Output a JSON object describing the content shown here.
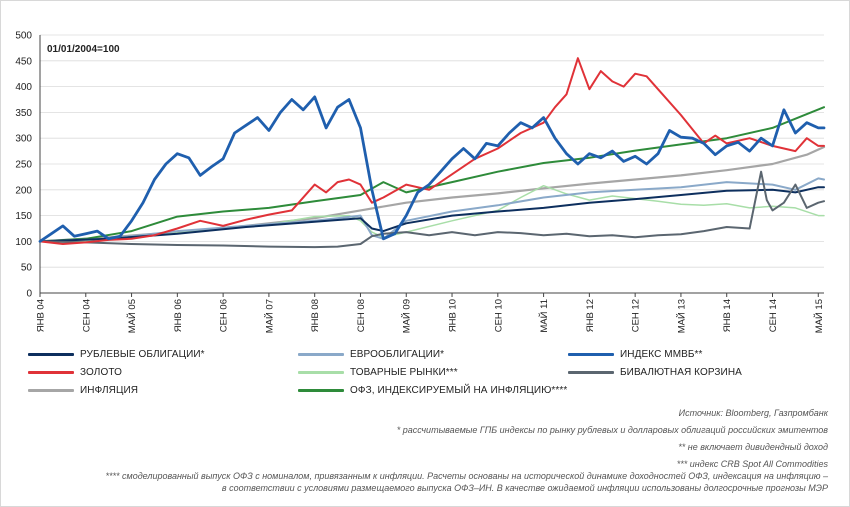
{
  "chart_data": {
    "type": "line",
    "title": "",
    "annotation": "01/01/2004=100",
    "xlabel": "",
    "ylabel": "",
    "ylim": [
      0,
      500
    ],
    "yticks": [
      0,
      50,
      100,
      150,
      200,
      250,
      300,
      350,
      400,
      450,
      500
    ],
    "xlim": [
      0,
      137
    ],
    "x_ticks": [
      {
        "label": "ЯНВ 04",
        "t": 0
      },
      {
        "label": "СЕН 04",
        "t": 8
      },
      {
        "label": "МАЙ 05",
        "t": 16
      },
      {
        "label": "ЯНВ 06",
        "t": 24
      },
      {
        "label": "СЕН 06",
        "t": 32
      },
      {
        "label": "МАЙ 07",
        "t": 40
      },
      {
        "label": "ЯНВ 08",
        "t": 48
      },
      {
        "label": "СЕН 08",
        "t": 56
      },
      {
        "label": "МАЙ 09",
        "t": 64
      },
      {
        "label": "ЯНВ 10",
        "t": 72
      },
      {
        "label": "СЕН 10",
        "t": 80
      },
      {
        "label": "МАЙ 11",
        "t": 88
      },
      {
        "label": "ЯНВ 12",
        "t": 96
      },
      {
        "label": "СЕН 12",
        "t": 104
      },
      {
        "label": "МАЙ 13",
        "t": 112
      },
      {
        "label": "ЯНВ 14",
        "t": 120
      },
      {
        "label": "СЕН 14",
        "t": 128
      },
      {
        "label": "МАЙ 15",
        "t": 136
      }
    ],
    "grid": true,
    "series": [
      {
        "name": "ИНФЛЯЦИЯ",
        "color": "#a6a6a6",
        "width": 2.2,
        "points": [
          [
            0,
            100
          ],
          [
            12,
            108
          ],
          [
            24,
            118
          ],
          [
            36,
            130
          ],
          [
            48,
            145
          ],
          [
            56,
            160
          ],
          [
            64,
            175
          ],
          [
            72,
            185
          ],
          [
            80,
            193
          ],
          [
            88,
            203
          ],
          [
            96,
            212
          ],
          [
            104,
            220
          ],
          [
            112,
            228
          ],
          [
            120,
            238
          ],
          [
            128,
            250
          ],
          [
            134,
            268
          ],
          [
            137,
            283
          ]
        ]
      },
      {
        "name": "ОФЗ, ИНДЕКСИРУЕМЫЙ НА ИНФЛЯЦИЮ****",
        "color": "#2e8b3a",
        "width": 2,
        "points": [
          [
            0,
            100
          ],
          [
            8,
            105
          ],
          [
            16,
            120
          ],
          [
            24,
            148
          ],
          [
            32,
            158
          ],
          [
            40,
            165
          ],
          [
            48,
            178
          ],
          [
            56,
            190
          ],
          [
            60,
            215
          ],
          [
            64,
            195
          ],
          [
            72,
            215
          ],
          [
            80,
            235
          ],
          [
            88,
            252
          ],
          [
            96,
            262
          ],
          [
            104,
            276
          ],
          [
            112,
            288
          ],
          [
            120,
            300
          ],
          [
            128,
            320
          ],
          [
            137,
            360
          ]
        ]
      },
      {
        "name": "ТОВАРНЫЕ РЫНКИ***",
        "color": "#a8dea8",
        "width": 1.5,
        "points": [
          [
            0,
            100
          ],
          [
            8,
            100
          ],
          [
            16,
            108
          ],
          [
            24,
            118
          ],
          [
            32,
            125
          ],
          [
            40,
            133
          ],
          [
            48,
            148
          ],
          [
            54,
            150
          ],
          [
            56,
            140
          ],
          [
            58,
            118
          ],
          [
            60,
            108
          ],
          [
            64,
            118
          ],
          [
            72,
            140
          ],
          [
            80,
            160
          ],
          [
            84,
            185
          ],
          [
            88,
            208
          ],
          [
            92,
            192
          ],
          [
            96,
            180
          ],
          [
            100,
            188
          ],
          [
            104,
            183
          ],
          [
            108,
            178
          ],
          [
            112,
            172
          ],
          [
            116,
            170
          ],
          [
            120,
            173
          ],
          [
            124,
            165
          ],
          [
            128,
            168
          ],
          [
            132,
            165
          ],
          [
            136,
            150
          ],
          [
            137,
            150
          ]
        ]
      },
      {
        "name": "ЕВРООБЛИГАЦИИ*",
        "color": "#8aa9c9",
        "width": 2,
        "points": [
          [
            0,
            100
          ],
          [
            12,
            105
          ],
          [
            24,
            120
          ],
          [
            36,
            130
          ],
          [
            48,
            140
          ],
          [
            56,
            150
          ],
          [
            58,
            112
          ],
          [
            60,
            105
          ],
          [
            64,
            140
          ],
          [
            72,
            158
          ],
          [
            80,
            170
          ],
          [
            88,
            185
          ],
          [
            96,
            195
          ],
          [
            104,
            200
          ],
          [
            112,
            205
          ],
          [
            120,
            215
          ],
          [
            128,
            210
          ],
          [
            132,
            200
          ],
          [
            136,
            222
          ],
          [
            137,
            220
          ]
        ]
      },
      {
        "name": "РУБЛЕВЫЕ ОБЛИГАЦИИ*",
        "color": "#0d2f5e",
        "width": 2,
        "points": [
          [
            0,
            100
          ],
          [
            12,
            105
          ],
          [
            24,
            115
          ],
          [
            36,
            128
          ],
          [
            48,
            138
          ],
          [
            56,
            145
          ],
          [
            58,
            125
          ],
          [
            60,
            120
          ],
          [
            64,
            135
          ],
          [
            72,
            150
          ],
          [
            80,
            158
          ],
          [
            88,
            165
          ],
          [
            96,
            175
          ],
          [
            104,
            182
          ],
          [
            112,
            190
          ],
          [
            120,
            198
          ],
          [
            128,
            200
          ],
          [
            132,
            195
          ],
          [
            136,
            205
          ],
          [
            137,
            205
          ]
        ]
      },
      {
        "name": "БИВАЛЮТНАЯ КОРЗИНА",
        "color": "#5b6670",
        "width": 2,
        "points": [
          [
            0,
            100
          ],
          [
            8,
            98
          ],
          [
            16,
            95
          ],
          [
            24,
            93
          ],
          [
            32,
            92
          ],
          [
            40,
            90
          ],
          [
            48,
            89
          ],
          [
            52,
            90
          ],
          [
            56,
            95
          ],
          [
            58,
            110
          ],
          [
            60,
            115
          ],
          [
            64,
            118
          ],
          [
            68,
            112
          ],
          [
            72,
            118
          ],
          [
            76,
            112
          ],
          [
            80,
            118
          ],
          [
            84,
            116
          ],
          [
            88,
            112
          ],
          [
            92,
            115
          ],
          [
            96,
            110
          ],
          [
            100,
            112
          ],
          [
            104,
            108
          ],
          [
            108,
            112
          ],
          [
            112,
            114
          ],
          [
            116,
            120
          ],
          [
            120,
            128
          ],
          [
            124,
            125
          ],
          [
            126,
            235
          ],
          [
            127,
            180
          ],
          [
            128,
            160
          ],
          [
            130,
            175
          ],
          [
            132,
            210
          ],
          [
            134,
            165
          ],
          [
            136,
            175
          ],
          [
            137,
            178
          ]
        ]
      },
      {
        "name": "ЗОЛОТО",
        "color": "#e03238",
        "width": 2,
        "points": [
          [
            0,
            100
          ],
          [
            4,
            95
          ],
          [
            8,
            98
          ],
          [
            12,
            103
          ],
          [
            16,
            105
          ],
          [
            20,
            112
          ],
          [
            24,
            125
          ],
          [
            28,
            140
          ],
          [
            32,
            130
          ],
          [
            36,
            142
          ],
          [
            40,
            152
          ],
          [
            44,
            160
          ],
          [
            48,
            210
          ],
          [
            50,
            195
          ],
          [
            52,
            215
          ],
          [
            54,
            220
          ],
          [
            56,
            210
          ],
          [
            58,
            175
          ],
          [
            60,
            185
          ],
          [
            64,
            210
          ],
          [
            68,
            200
          ],
          [
            72,
            230
          ],
          [
            76,
            260
          ],
          [
            80,
            280
          ],
          [
            84,
            310
          ],
          [
            88,
            330
          ],
          [
            90,
            360
          ],
          [
            92,
            385
          ],
          [
            94,
            455
          ],
          [
            96,
            395
          ],
          [
            98,
            430
          ],
          [
            100,
            410
          ],
          [
            102,
            400
          ],
          [
            104,
            425
          ],
          [
            106,
            420
          ],
          [
            108,
            395
          ],
          [
            112,
            345
          ],
          [
            116,
            290
          ],
          [
            118,
            305
          ],
          [
            120,
            290
          ],
          [
            124,
            300
          ],
          [
            128,
            285
          ],
          [
            132,
            275
          ],
          [
            134,
            300
          ],
          [
            136,
            285
          ],
          [
            137,
            285
          ]
        ]
      },
      {
        "name": "ИНДЕКС ММВБ**",
        "color": "#1f5fae",
        "width": 2.8,
        "points": [
          [
            0,
            100
          ],
          [
            2,
            115
          ],
          [
            4,
            130
          ],
          [
            6,
            110
          ],
          [
            8,
            115
          ],
          [
            10,
            120
          ],
          [
            12,
            105
          ],
          [
            14,
            110
          ],
          [
            16,
            140
          ],
          [
            18,
            175
          ],
          [
            20,
            220
          ],
          [
            22,
            250
          ],
          [
            24,
            270
          ],
          [
            26,
            262
          ],
          [
            28,
            228
          ],
          [
            30,
            245
          ],
          [
            32,
            260
          ],
          [
            34,
            310
          ],
          [
            36,
            325
          ],
          [
            38,
            340
          ],
          [
            40,
            315
          ],
          [
            42,
            350
          ],
          [
            44,
            375
          ],
          [
            46,
            355
          ],
          [
            48,
            380
          ],
          [
            50,
            320
          ],
          [
            52,
            360
          ],
          [
            54,
            375
          ],
          [
            56,
            320
          ],
          [
            58,
            200
          ],
          [
            60,
            105
          ],
          [
            62,
            115
          ],
          [
            64,
            150
          ],
          [
            66,
            195
          ],
          [
            68,
            210
          ],
          [
            70,
            235
          ],
          [
            72,
            260
          ],
          [
            74,
            280
          ],
          [
            76,
            260
          ],
          [
            78,
            290
          ],
          [
            80,
            285
          ],
          [
            82,
            310
          ],
          [
            84,
            330
          ],
          [
            86,
            320
          ],
          [
            88,
            340
          ],
          [
            90,
            300
          ],
          [
            92,
            270
          ],
          [
            94,
            250
          ],
          [
            96,
            270
          ],
          [
            98,
            262
          ],
          [
            100,
            275
          ],
          [
            102,
            255
          ],
          [
            104,
            265
          ],
          [
            106,
            250
          ],
          [
            108,
            270
          ],
          [
            110,
            315
          ],
          [
            112,
            302
          ],
          [
            114,
            300
          ],
          [
            116,
            290
          ],
          [
            118,
            268
          ],
          [
            120,
            285
          ],
          [
            122,
            292
          ],
          [
            124,
            275
          ],
          [
            126,
            300
          ],
          [
            128,
            285
          ],
          [
            130,
            355
          ],
          [
            132,
            310
          ],
          [
            134,
            330
          ],
          [
            136,
            320
          ],
          [
            137,
            320
          ]
        ]
      }
    ]
  },
  "legend": {
    "items": [
      {
        "label": "РУБЛЕВЫЕ ОБЛИГАЦИИ*",
        "color": "#0d2f5e"
      },
      {
        "label": "ЕВРООБЛИГАЦИИ*",
        "color": "#8aa9c9"
      },
      {
        "label": "ИНДЕКС ММВБ**",
        "color": "#1f5fae"
      },
      {
        "label": "ЗОЛОТО",
        "color": "#e03238"
      },
      {
        "label": "ТОВАРНЫЕ РЫНКИ***",
        "color": "#a8dea8"
      },
      {
        "label": "БИВАЛЮТНАЯ КОРЗИНА",
        "color": "#5b6670"
      },
      {
        "label": "ИНФЛЯЦИЯ",
        "color": "#a6a6a6"
      },
      {
        "label": "ОФЗ, ИНДЕКСИРУЕМЫЙ НА ИНФЛЯЦИЮ****",
        "color": "#2e8b3a"
      }
    ]
  },
  "notes": {
    "source": "Источник: Bloomberg, Газпромбанк",
    "note1": "* рассчитываемые ГПБ индексы по рынку рублевых и долларовых облигаций российских эмитентов",
    "note2": "** не включает дивидендный доход",
    "note3": "*** индекс CRB Spot All Commodities",
    "note4_line1": "**** смоделированный выпуск ОФЗ с номиналом, привязанным к инфляции. Расчеты основаны на исторической динамике доходностей ОФЗ, индексация на инфляцию –",
    "note4_line2": "в соответствии с условиями размещаемого выпуска ОФЗ–ИН. В качестве ожидаемой инфляции использованы долгосрочные прогнозы МЭР"
  }
}
